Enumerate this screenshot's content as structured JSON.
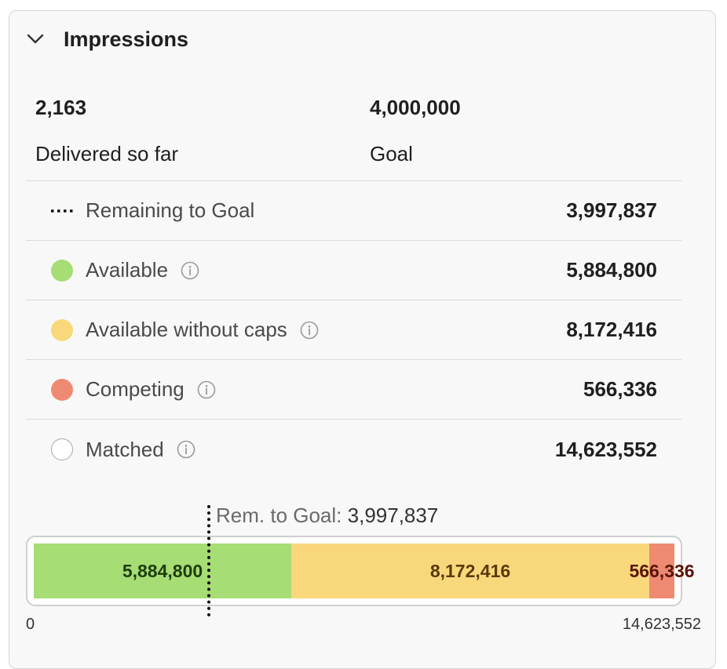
{
  "panel": {
    "title": "Impressions",
    "chevron_icon": "chevron-down-icon"
  },
  "stats": {
    "delivered_value": "2,163",
    "delivered_label": "Delivered so far",
    "goal_value": "4,000,000",
    "goal_label": "Goal"
  },
  "rows": [
    {
      "label": "Remaining to Goal",
      "value": "3,997,837",
      "marker": "dotted-line-icon",
      "color": "#111111",
      "info": false
    },
    {
      "label": "Available",
      "value": "5,884,800",
      "marker": "green-dot-icon",
      "color": "#a6dd74",
      "info": true
    },
    {
      "label": "Available without caps",
      "value": "8,172,416",
      "marker": "yellow-dot-icon",
      "color": "#f8d87b",
      "info": true
    },
    {
      "label": "Competing",
      "value": "566,336",
      "marker": "red-dot-icon",
      "color": "#ef8a72",
      "info": true
    },
    {
      "label": "Matched",
      "value": "14,623,552",
      "marker": "empty-dot-icon",
      "color": "#ffffff",
      "info": true
    }
  ],
  "chart_data": {
    "type": "bar",
    "orientation": "horizontal-stacked",
    "segments": [
      {
        "label": "5,884,800",
        "value": 5884800,
        "color": "#a6dd74"
      },
      {
        "label": "8,172,416",
        "value": 8172416,
        "color": "#f8d87b"
      },
      {
        "label": "566,336",
        "value": 566336,
        "color": "#ef8a72"
      }
    ],
    "xlim": [
      0,
      14623552
    ],
    "axis_min_label": "0",
    "axis_max_label": "14,623,552",
    "annotation": {
      "label": "Rem. to Goal:",
      "value_text": "3,997,837",
      "value": 3997837
    }
  }
}
